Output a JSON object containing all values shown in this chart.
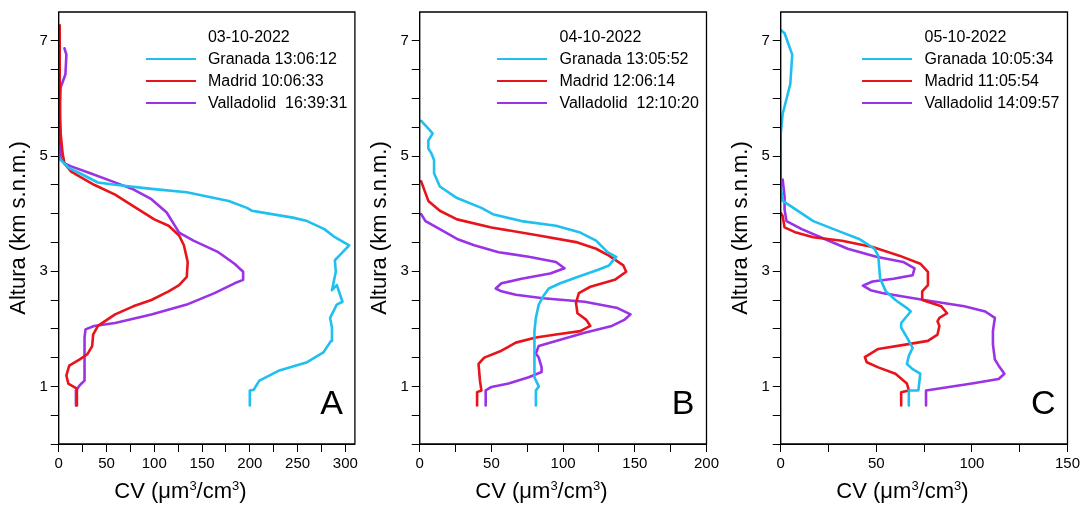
{
  "chart_data": [
    {
      "type": "line",
      "xlabel": "CV (μm$^{3}$/cm$^{3}$)",
      "ylabel": "Altura (km s.n.m.)",
      "legend_title": "03-10-2022",
      "legend": "top right",
      "annotations": [
        "A"
      ],
      "xlim": [
        0,
        310
      ],
      "ylim": [
        0,
        7.5
      ],
      "xticks": [
        0,
        {
          "value": 25,
          "label": null
        },
        50,
        {
          "value": 75,
          "label": null
        },
        100,
        {
          "value": 125,
          "label": null
        },
        150,
        {
          "value": 175,
          "label": null
        },
        200,
        {
          "value": 225,
          "label": null
        },
        250,
        {
          "value": 275,
          "label": null
        },
        300
      ],
      "yticks": [
        {
          "value": 0,
          "label": null
        },
        {
          "value": 0.5,
          "label": null
        },
        1,
        {
          "value": 1.5,
          "label": null
        },
        {
          "value": 2,
          "label": null
        },
        {
          "value": 2.5,
          "label": null
        },
        3,
        {
          "value": 3.5,
          "label": null
        },
        {
          "value": 4,
          "label": null
        },
        {
          "value": 4.5,
          "label": null
        },
        5,
        {
          "value": 5.5,
          "label": null
        },
        {
          "value": 6,
          "label": null
        },
        {
          "value": 6.5,
          "label": null
        },
        7
      ],
      "series": [
        {
          "name": "Granada 13:06:12",
          "color": "#1fbfef",
          "x": [
            200,
            200,
            204,
            210,
            230,
            260,
            277,
            285,
            286,
            284,
            291,
            297,
            291,
            286,
            290,
            289,
            304,
            289,
            278,
            260,
            245,
            202,
            197,
            178,
            134,
            97,
            59,
            41,
            22,
            11,
            2,
            0
          ],
          "values": [
            0.67,
            0.93,
            0.94,
            1.1,
            1.27,
            1.42,
            1.59,
            1.79,
            2.02,
            2.19,
            2.42,
            2.47,
            2.76,
            2.67,
            2.99,
            3.19,
            3.45,
            3.59,
            3.73,
            3.87,
            3.93,
            4.05,
            4.1,
            4.22,
            4.37,
            4.43,
            4.5,
            4.54,
            4.7,
            4.79,
            4.93,
            4.99
          ]
        },
        {
          "name": "Madrid 10:06:33",
          "color": "#e8141b",
          "x": [
            19,
            19,
            10,
            8,
            11,
            22,
            30,
            35,
            36,
            41,
            59,
            78,
            97,
            115,
            126,
            134,
            135,
            131,
            126,
            115,
            100,
            78,
            59,
            37,
            13,
            6,
            4,
            2,
            1,
            1
          ],
          "values": [
            0.67,
            0.96,
            1.05,
            1.19,
            1.36,
            1.47,
            1.56,
            1.7,
            1.9,
            2.05,
            2.25,
            2.39,
            2.5,
            2.65,
            2.76,
            2.9,
            3.16,
            3.45,
            3.62,
            3.79,
            3.9,
            4.13,
            4.33,
            4.5,
            4.73,
            4.87,
            5.05,
            5.39,
            5.96,
            7.27
          ]
        },
        {
          "name": "Valladolid  16:39:31",
          "color": "#9a32e6",
          "x": [
            18,
            18,
            22,
            27,
            27,
            28,
            37,
            59,
            97,
            134,
            163,
            184,
            193,
            193,
            184,
            167,
            141,
            126,
            113,
            97,
            78,
            56,
            33,
            13,
            6,
            2,
            1,
            2,
            7,
            8,
            6
          ],
          "values": [
            0.67,
            0.93,
            1.02,
            1.1,
            1.85,
            1.99,
            2.05,
            2.1,
            2.25,
            2.42,
            2.62,
            2.79,
            2.85,
            2.99,
            3.13,
            3.33,
            3.53,
            3.67,
            4.02,
            4.25,
            4.42,
            4.56,
            4.7,
            4.82,
            4.87,
            4.96,
            5.67,
            6.19,
            6.42,
            6.76,
            6.87
          ]
        }
      ]
    },
    {
      "type": "line",
      "xlabel": "CV (μm$^{3}$/cm$^{3}$)",
      "ylabel": "Altura (km s.n.m.)",
      "legend_title": "04-10-2022",
      "legend": "top right",
      "annotations": [
        "B"
      ],
      "xlim": [
        0,
        200
      ],
      "ylim": [
        0,
        7.5
      ],
      "xticks": [
        0,
        {
          "value": 25,
          "label": null
        },
        50,
        {
          "value": 75,
          "label": null
        },
        100,
        {
          "value": 125,
          "label": null
        },
        150,
        {
          "value": 175,
          "label": null
        },
        200
      ],
      "yticks": [
        {
          "value": 0,
          "label": null
        },
        {
          "value": 0.5,
          "label": null
        },
        1,
        {
          "value": 1.5,
          "label": null
        },
        {
          "value": 2,
          "label": null
        },
        {
          "value": 2.5,
          "label": null
        },
        3,
        {
          "value": 3.5,
          "label": null
        },
        {
          "value": 4,
          "label": null
        },
        {
          "value": 4.5,
          "label": null
        },
        5,
        {
          "value": 5.5,
          "label": null
        },
        {
          "value": 6,
          "label": null
        },
        {
          "value": 6.5,
          "label": null
        },
        7
      ],
      "series": [
        {
          "name": "Granada 13:05:52",
          "color": "#1fbfef",
          "x": [
            81,
            81,
            83,
            80,
            80,
            81,
            83,
            86,
            90,
            98,
            110,
            124,
            132,
            137,
            131,
            123,
            112,
            95,
            71,
            51,
            43,
            26,
            14,
            10,
            10,
            8,
            6,
            6,
            9,
            7,
            1
          ],
          "values": [
            0.67,
            0.93,
            1,
            1.16,
            1.96,
            2.19,
            2.42,
            2.56,
            2.7,
            2.79,
            2.9,
            3.02,
            3.1,
            3.25,
            3.33,
            3.53,
            3.67,
            3.79,
            3.87,
            3.99,
            4.1,
            4.27,
            4.47,
            4.7,
            4.93,
            5.05,
            5.13,
            5.27,
            5.39,
            5.45,
            5.61
          ]
        },
        {
          "name": "Madrid 12:06:14",
          "color": "#e8141b",
          "x": [
            40,
            40,
            43,
            42,
            41,
            45,
            57,
            67,
            81,
            95,
            112,
            119,
            116,
            110,
            109,
            111,
            119,
            136,
            144,
            142,
            132,
            123,
            110,
            83,
            50,
            26,
            14,
            6,
            1
          ],
          "values": [
            0.67,
            0.9,
            0.93,
            1.1,
            1.39,
            1.5,
            1.62,
            1.76,
            1.85,
            1.9,
            1.96,
            2.05,
            2.16,
            2.27,
            2.45,
            2.62,
            2.73,
            2.85,
            2.99,
            3.1,
            3.27,
            3.39,
            3.5,
            3.62,
            3.76,
            3.9,
            4.05,
            4.22,
            4.56
          ]
        },
        {
          "name": "Valladolid  12:10:20",
          "color": "#9a32e6",
          "x": [
            46,
            46,
            50,
            62,
            76,
            85,
            85,
            83,
            81,
            83,
            95,
            115,
            134,
            143,
            147,
            138,
            115,
            86,
            67,
            57,
            53,
            57,
            71,
            91,
            101,
            95,
            76,
            55,
            38,
            26,
            14,
            4,
            1
          ],
          "values": [
            0.67,
            0.93,
            0.99,
            1.05,
            1.16,
            1.25,
            1.33,
            1.5,
            1.57,
            1.7,
            1.79,
            1.93,
            2.05,
            2.16,
            2.25,
            2.36,
            2.47,
            2.53,
            2.59,
            2.65,
            2.7,
            2.79,
            2.87,
            2.96,
            3.05,
            3.16,
            3.25,
            3.33,
            3.45,
            3.56,
            3.73,
            3.87,
            3.99
          ]
        }
      ]
    },
    {
      "type": "line",
      "xlabel": "CV (μm$^{3}$/cm$^{3}$)",
      "ylabel": "Altura (km s.n.m.)",
      "legend_title": "05-10-2022",
      "legend": "top right",
      "annotations": [
        "C"
      ],
      "xlim": [
        0,
        150
      ],
      "ylim": [
        0,
        7.5
      ],
      "xticks": [
        0,
        {
          "value": 25,
          "label": null
        },
        50,
        {
          "value": 75,
          "label": null
        },
        100,
        {
          "value": 125,
          "label": null
        },
        150
      ],
      "yticks": [
        {
          "value": 0,
          "label": null
        },
        {
          "value": 0.5,
          "label": null
        },
        1,
        {
          "value": 1.5,
          "label": null
        },
        {
          "value": 2,
          "label": null
        },
        {
          "value": 2.5,
          "label": null
        },
        3,
        {
          "value": 3.5,
          "label": null
        },
        {
          "value": 4,
          "label": null
        },
        {
          "value": 4.5,
          "label": null
        },
        5,
        {
          "value": 5.5,
          "label": null
        },
        {
          "value": 6,
          "label": null
        },
        {
          "value": 6.5,
          "label": null
        },
        7
      ],
      "series": [
        {
          "name": "Granada 10:05:34",
          "color": "#1fbfef",
          "x": [
            67,
            67,
            72,
            73,
            69,
            66,
            67,
            69,
            66,
            63,
            63,
            68,
            66,
            60,
            55,
            52,
            51,
            49,
            41,
            30,
            17,
            8,
            1,
            0,
            0,
            1,
            5,
            6,
            2,
            0
          ],
          "values": [
            0.67,
            0.93,
            0.93,
            1.22,
            1.3,
            1.39,
            1.53,
            1.67,
            1.85,
            2.02,
            2.1,
            2.3,
            2.36,
            2.5,
            2.65,
            2.87,
            3.27,
            3.39,
            3.56,
            3.7,
            3.87,
            4.07,
            4.22,
            4.47,
            5.39,
            5.73,
            6.25,
            6.76,
            7.13,
            7.19
          ]
        },
        {
          "name": "Madrid 11:05:54",
          "color": "#e8141b",
          "x": [
            63,
            63,
            67,
            66,
            60,
            51,
            45,
            44,
            51,
            66,
            77,
            82,
            83,
            82,
            83,
            87,
            84,
            74,
            74,
            77,
            77,
            73,
            62,
            48,
            32,
            17,
            8,
            2,
            1,
            0
          ],
          "values": [
            0.67,
            0.9,
            0.93,
            1.05,
            1.22,
            1.33,
            1.42,
            1.51,
            1.65,
            1.73,
            1.79,
            1.9,
            2.05,
            2.13,
            2.19,
            2.27,
            2.39,
            2.5,
            2.65,
            2.76,
            2.99,
            3.13,
            3.27,
            3.42,
            3.53,
            3.59,
            3.67,
            3.76,
            3.96,
            4.01
          ]
        },
        {
          "name": "Valladolid 14:09:57",
          "color": "#9a32e6",
          "x": [
            76,
            76,
            82,
            100,
            114,
            117,
            114,
            112,
            111,
            111,
            112,
            107,
            96,
            75,
            53,
            47,
            43,
            48,
            59,
            69,
            70,
            64,
            50,
            35,
            23,
            11,
            3,
            2,
            2,
            1
          ],
          "values": [
            0.67,
            0.93,
            0.96,
            1.05,
            1.13,
            1.22,
            1.36,
            1.47,
            1.73,
            1.96,
            2.19,
            2.3,
            2.39,
            2.5,
            2.62,
            2.67,
            2.75,
            2.82,
            2.87,
            2.93,
            3.05,
            3.16,
            3.25,
            3.39,
            3.56,
            3.73,
            3.87,
            4.07,
            4.3,
            4.59
          ]
        }
      ]
    }
  ]
}
